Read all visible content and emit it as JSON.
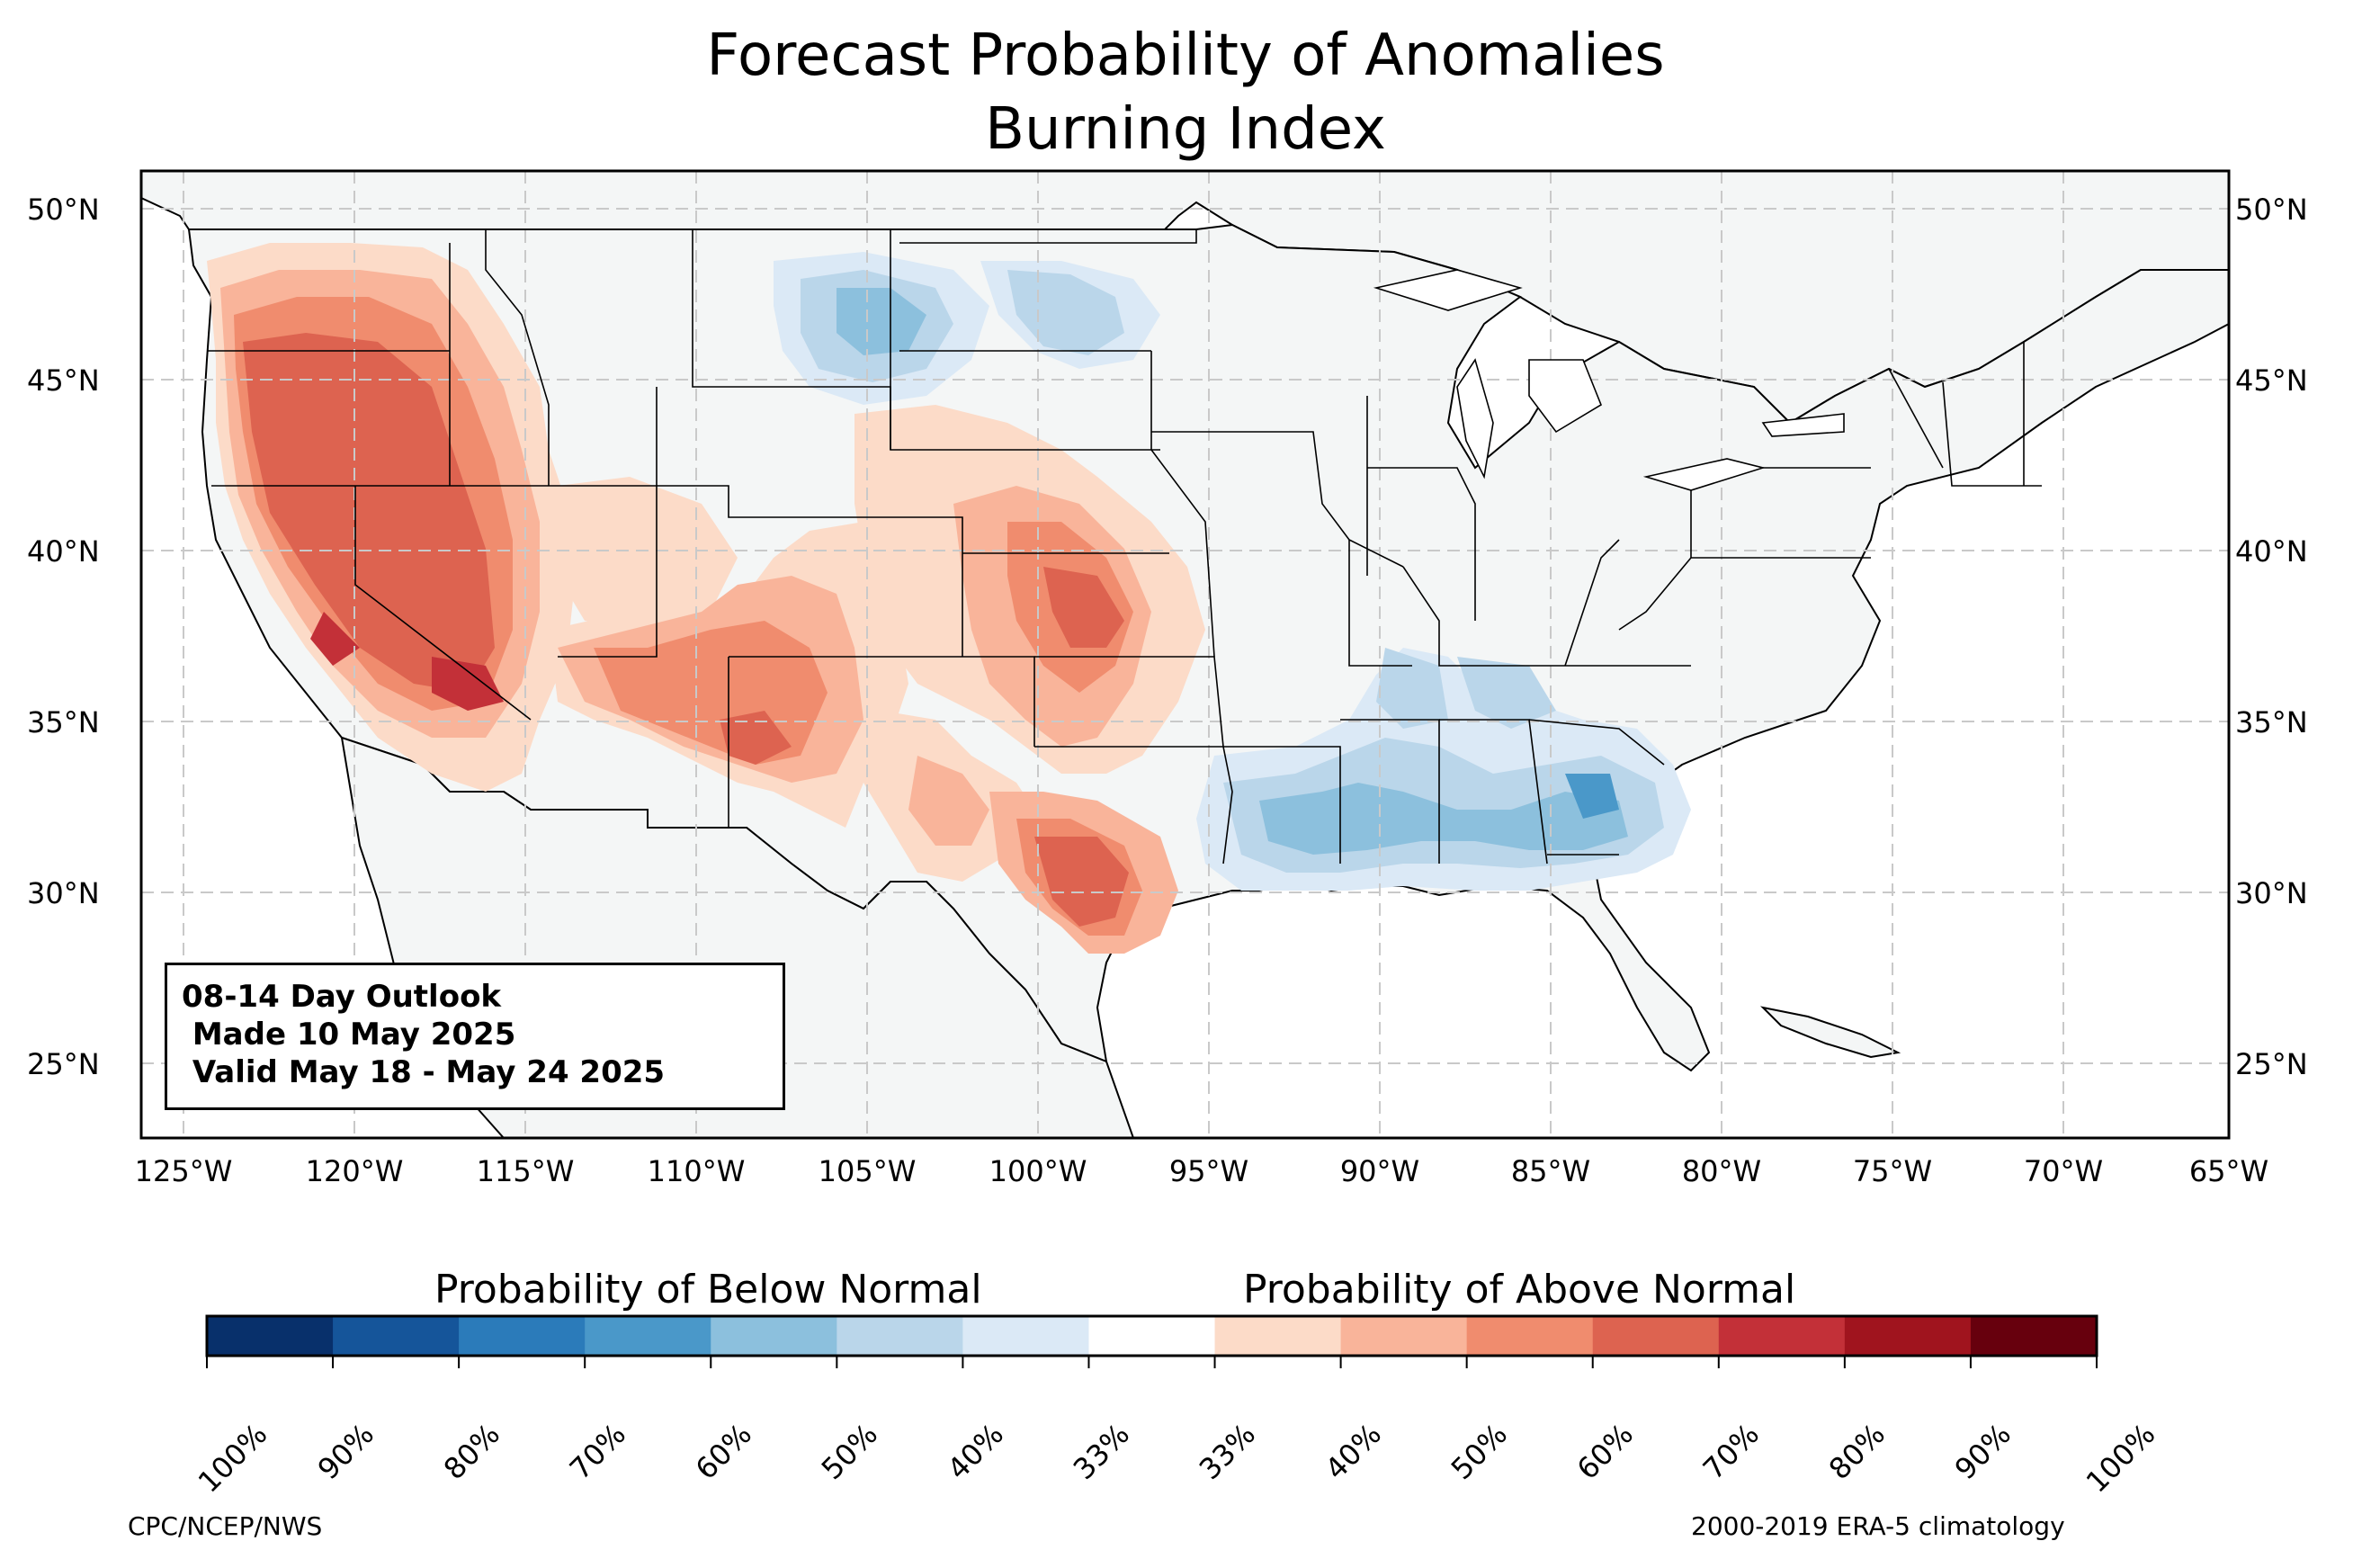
{
  "title_line1": "Forecast Probability of Anomalies",
  "title_line2": "Burning Index",
  "outlook": {
    "line1": "08-14 Day Outlook",
    "line2": " Made 10 May 2025",
    "line3": " Valid May 18 - May 24 2025"
  },
  "lat_labels": [
    "50°N",
    "45°N",
    "40°N",
    "35°N",
    "30°N",
    "25°N"
  ],
  "lon_labels": [
    "125°W",
    "120°W",
    "115°W",
    "110°W",
    "105°W",
    "100°W",
    "95°W",
    "90°W",
    "85°W",
    "80°W",
    "75°W",
    "70°W",
    "65°W"
  ],
  "colorbar": {
    "below_label": "Probability of Below Normal",
    "above_label": "Probability of Above Normal",
    "ticks": [
      "100%",
      "90%",
      "80%",
      "70%",
      "60%",
      "50%",
      "40%",
      "33%",
      "33%",
      "40%",
      "50%",
      "60%",
      "70%",
      "80%",
      "90%",
      "100%"
    ],
    "colors": [
      "#08306b",
      "#15559a",
      "#2b7bba",
      "#4a98c9",
      "#8cc0dd",
      "#bad6ea",
      "#dbe9f6",
      "#ffffff",
      "#fcdbc8",
      "#f9b49a",
      "#f08c6e",
      "#dd6350",
      "#c33038",
      "#a0141e",
      "#67000d"
    ]
  },
  "credits": {
    "left": "CPC/NCEP/NWS",
    "right": "2000-2019 ERA-5 climatology"
  },
  "map_colors": {
    "land": "#f4f6f6",
    "ocean": "#ffffff",
    "above_40": "#fcdbc8",
    "above_50": "#f9b49a",
    "above_60": "#f08c6e",
    "above_70": "#dd6350",
    "above_80": "#c33038",
    "below_40": "#dbe9f6",
    "below_50": "#bad6ea",
    "below_60": "#8cc0dd",
    "below_70": "#4a98c9"
  }
}
